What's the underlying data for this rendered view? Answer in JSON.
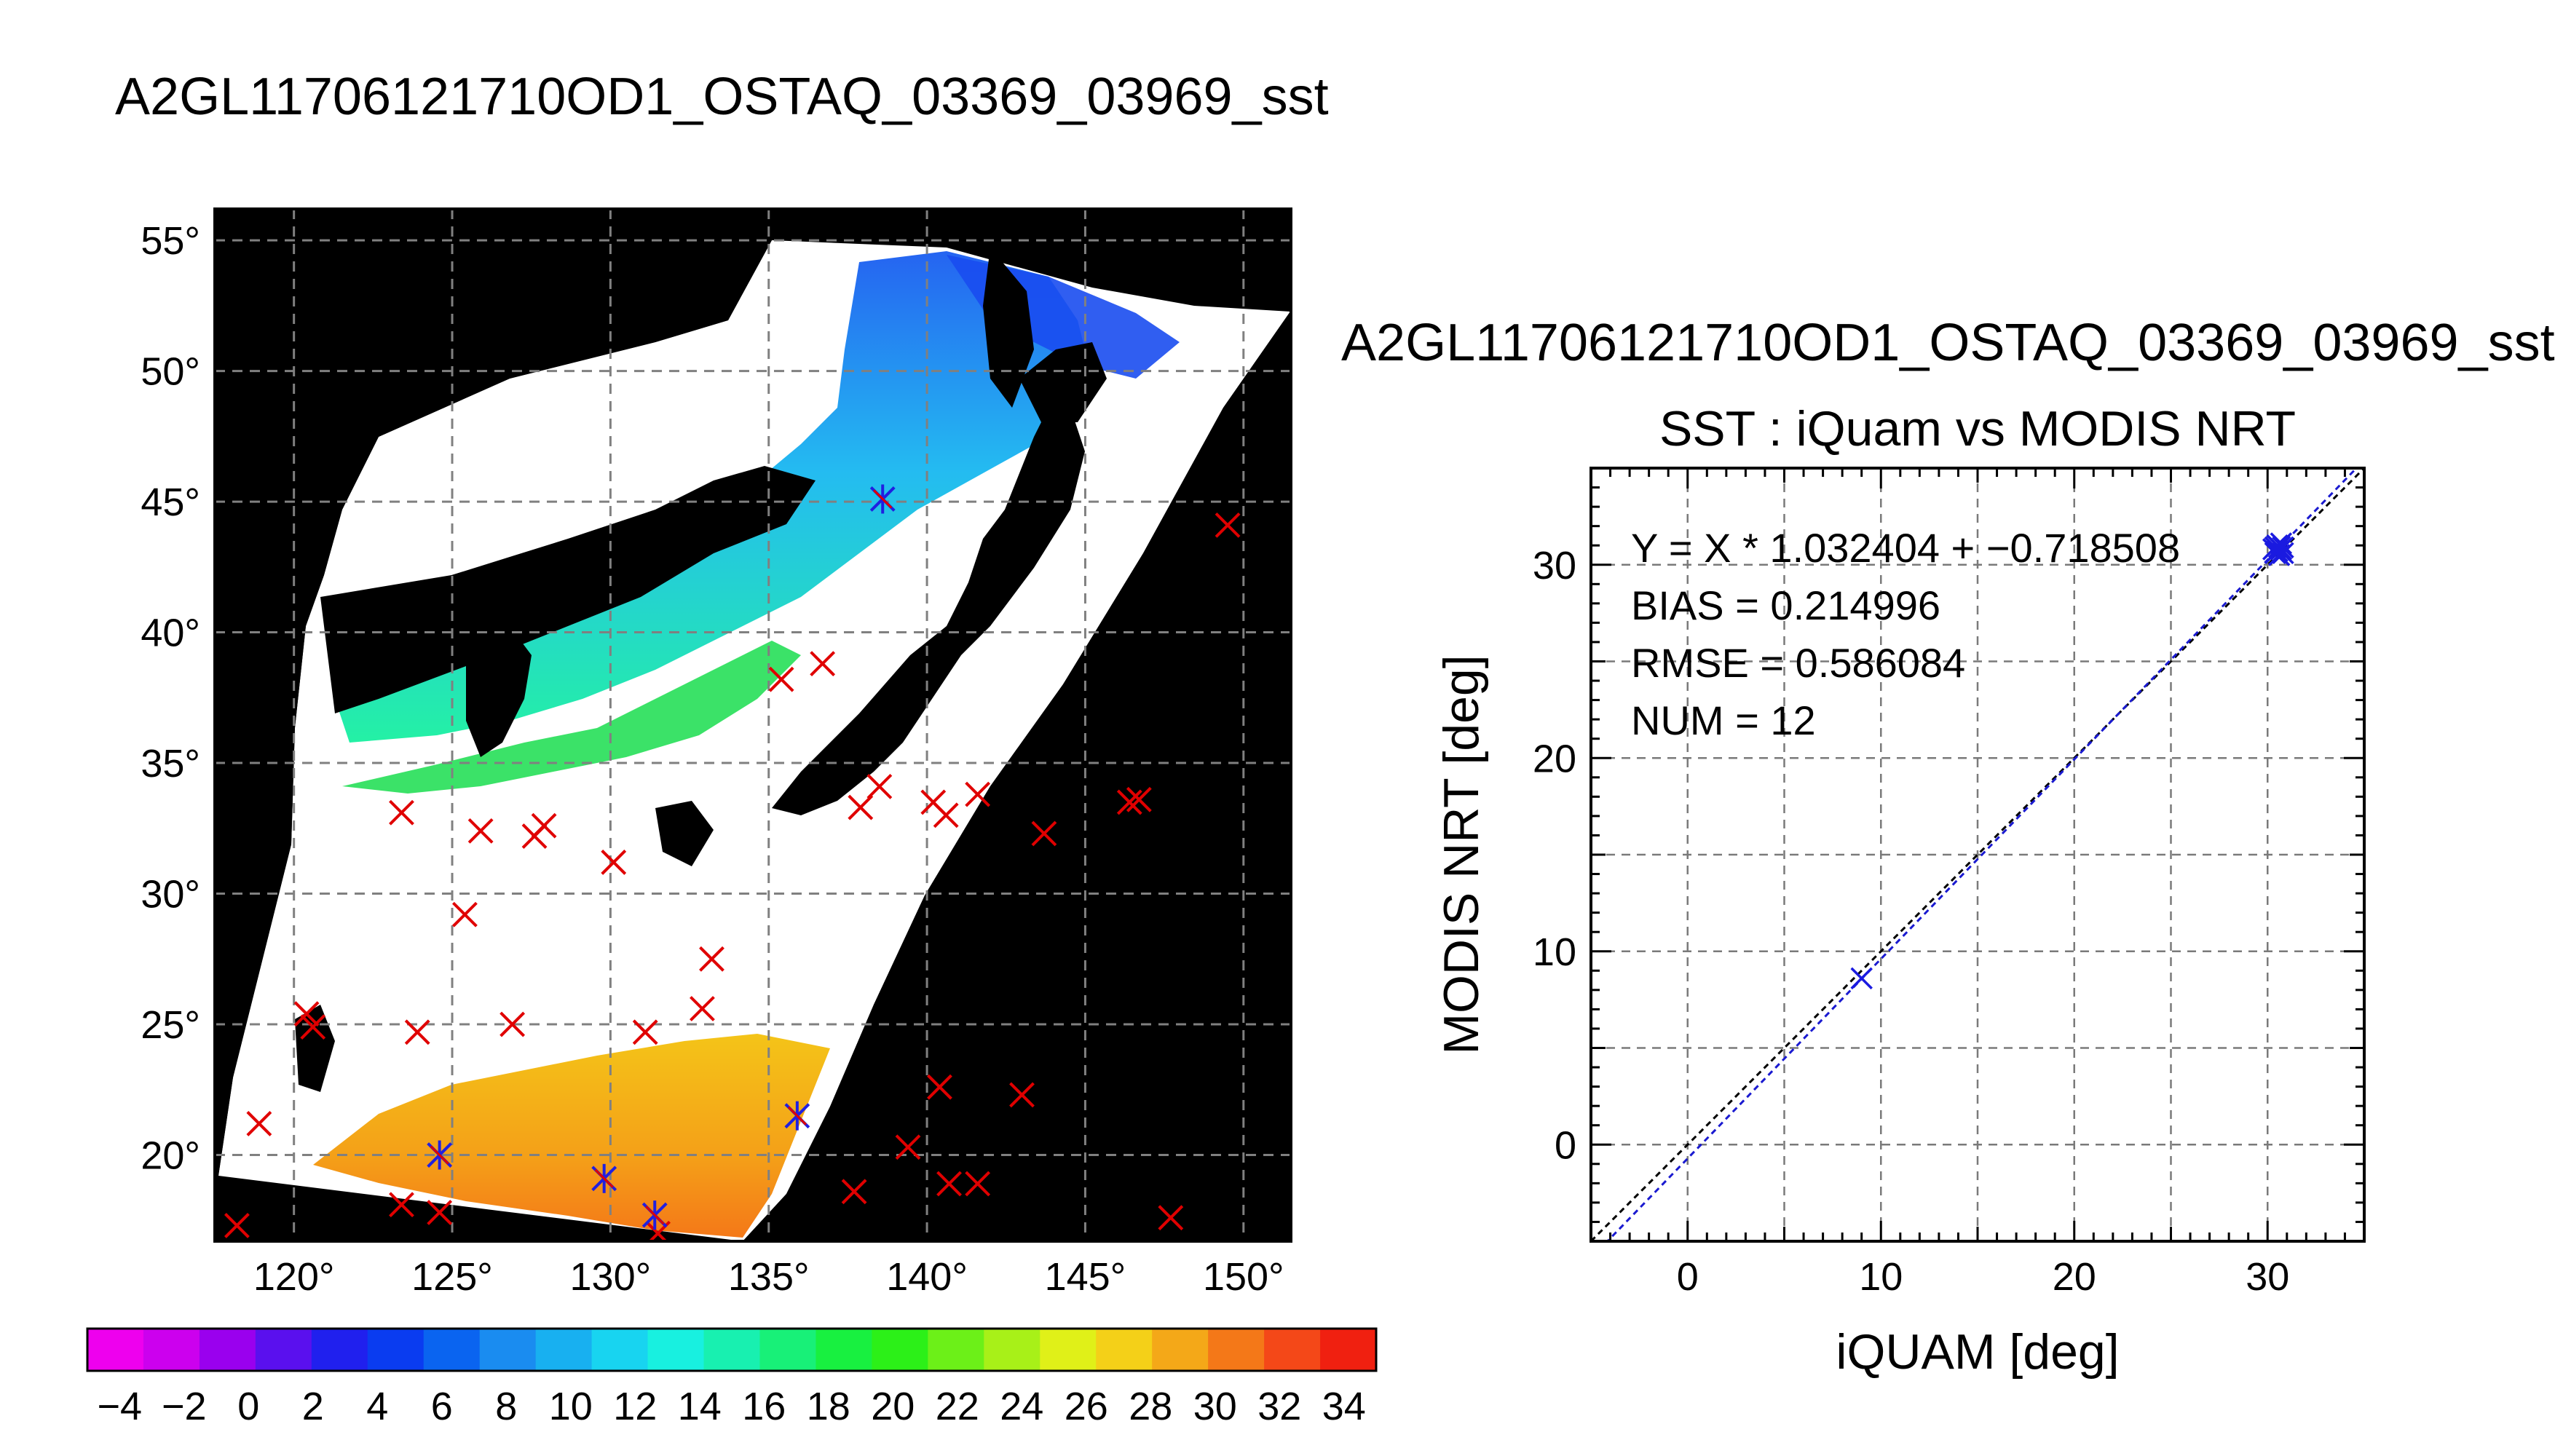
{
  "header": {
    "title": "A2GL11706121710OD1_OSTAQ_03369_03969_sst"
  },
  "map": {
    "lon_ticks": [
      "120°",
      "125°",
      "130°",
      "135°",
      "140°",
      "145°",
      "150°"
    ],
    "lat_ticks": [
      "55°",
      "50°",
      "45°",
      "40°",
      "35°",
      "30°",
      "25°",
      "20°"
    ],
    "colorbar_ticks": [
      "−4",
      "−2",
      "0",
      "2",
      "4",
      "6",
      "8",
      "10",
      "12",
      "14",
      "16",
      "18",
      "20",
      "22",
      "24",
      "26",
      "28",
      "30",
      "32",
      "34"
    ],
    "colorbar_colors": [
      "#ee00ee",
      "#cc00ee",
      "#9a00ee",
      "#5a10ee",
      "#2020ee",
      "#0a3cf0",
      "#0a64f0",
      "#1a8cf0",
      "#18b0f0",
      "#18d4f0",
      "#18f0e0",
      "#18f0b0",
      "#18f078",
      "#18f040",
      "#2cf018",
      "#6cf018",
      "#a8f018",
      "#e0f018",
      "#f4d018",
      "#f4a818",
      "#f47818",
      "#f44818",
      "#f02010"
    ],
    "matchups_red": [
      [
        118.2,
        17.3
      ],
      [
        118.9,
        21.2
      ],
      [
        120.4,
        25.4
      ],
      [
        120.6,
        24.9
      ],
      [
        123.4,
        33.1
      ],
      [
        123.4,
        18.1
      ],
      [
        123.9,
        24.7
      ],
      [
        124.6,
        17.8
      ],
      [
        125.4,
        29.2
      ],
      [
        125.9,
        32.4
      ],
      [
        126.9,
        25.0
      ],
      [
        127.6,
        32.2
      ],
      [
        127.9,
        32.6
      ],
      [
        130.1,
        31.2
      ],
      [
        131.1,
        24.7
      ],
      [
        132.9,
        25.6
      ],
      [
        133.2,
        27.5
      ],
      [
        135.4,
        38.2
      ],
      [
        136.7,
        38.8
      ],
      [
        137.7,
        18.6
      ],
      [
        137.9,
        33.3
      ],
      [
        138.5,
        34.1
      ],
      [
        139.4,
        20.3
      ],
      [
        140.2,
        33.5
      ],
      [
        140.4,
        22.6
      ],
      [
        140.6,
        33.0
      ],
      [
        140.7,
        18.9
      ],
      [
        141.6,
        18.9
      ],
      [
        141.6,
        33.8
      ],
      [
        143.0,
        22.3
      ],
      [
        143.7,
        32.3
      ],
      [
        146.4,
        33.5
      ],
      [
        146.7,
        33.6
      ],
      [
        147.7,
        17.6
      ],
      [
        149.5,
        44.1
      ],
      [
        131.5,
        17.0
      ]
    ],
    "matchups_blue": [
      [
        124.6,
        20.0
      ],
      [
        129.8,
        19.1
      ],
      [
        131.4,
        17.7
      ],
      [
        135.9,
        21.5
      ],
      [
        138.6,
        45.1
      ]
    ]
  },
  "scatter": {
    "title": "A2GL11706121710OD1_OSTAQ_03369_03969_sst",
    "subtitle": "SST : iQuam vs MODIS NRT",
    "xlabel": "iQUAM [deg]",
    "ylabel": "MODIS NRT [deg]",
    "stats": {
      "fit": "Y = X * 1.032404 + −0.718508",
      "bias": "BIAS = 0.214996",
      "rmse": "RMSE = 0.586084",
      "num": "NUM = 12"
    }
  },
  "chart_data": {
    "type": "scatter",
    "title": "SST : iQuam vs MODIS NRT",
    "xlabel": "iQUAM [deg]",
    "ylabel": "MODIS NRT [deg]",
    "xlim": [
      -5,
      35
    ],
    "ylim": [
      -5,
      35
    ],
    "xticks": [
      0,
      10,
      20,
      30
    ],
    "yticks": [
      0,
      10,
      20,
      30
    ],
    "grid": true,
    "series": [
      {
        "values": [
          [
            9.0,
            8.6
          ],
          [
            30.5,
            31.0
          ],
          [
            30.7,
            30.8
          ],
          [
            30.6,
            30.5
          ],
          [
            30.4,
            30.9
          ],
          [
            30.8,
            30.6
          ],
          [
            30.5,
            30.7
          ],
          [
            30.3,
            30.8
          ],
          [
            30.7,
            31.1
          ],
          [
            30.6,
            30.9
          ],
          [
            30.4,
            30.6
          ],
          [
            30.8,
            30.9
          ]
        ]
      }
    ],
    "fit": {
      "slope": 1.032404,
      "intercept": -0.718508
    }
  }
}
